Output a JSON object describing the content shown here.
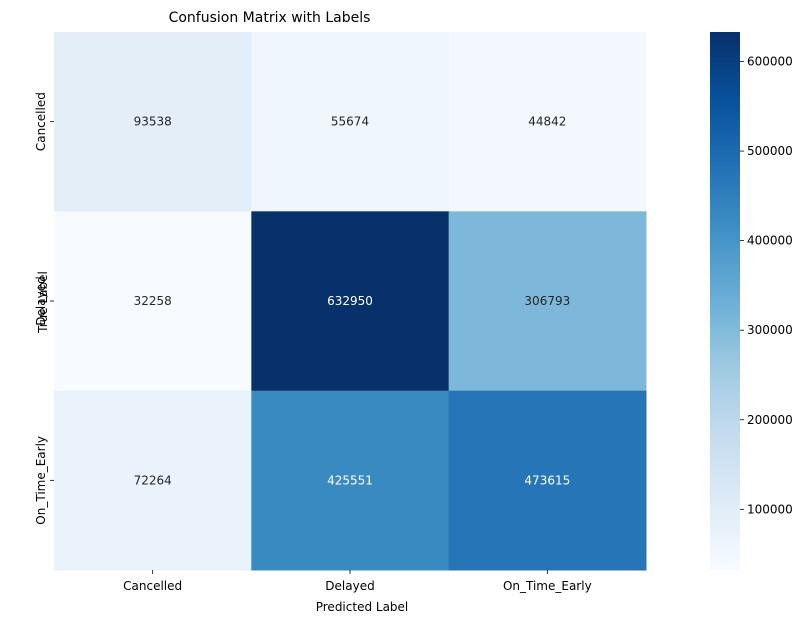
{
  "chart_data": {
    "type": "heatmap",
    "title": "Confusion Matrix with Labels",
    "xlabel": "Predicted Label",
    "ylabel": "True Label",
    "x_categories": [
      "Cancelled",
      "Delayed",
      "On_Time_Early"
    ],
    "y_categories": [
      "Cancelled",
      "Delayed",
      "On_Time_Early"
    ],
    "values": [
      [
        93538,
        55674,
        44842
      ],
      [
        32258,
        632950,
        306793
      ],
      [
        72264,
        425551,
        473615
      ]
    ],
    "colormap": "Blues",
    "colorbar": {
      "range": [
        32258,
        632950
      ],
      "ticks": [
        100000,
        200000,
        300000,
        400000,
        500000,
        600000
      ],
      "tick_labels": [
        "100000",
        "200000",
        "300000",
        "400000",
        "500000",
        "600000"
      ]
    },
    "annotation_colors": {
      "dark": "#262626",
      "light": "#ffffff"
    }
  }
}
